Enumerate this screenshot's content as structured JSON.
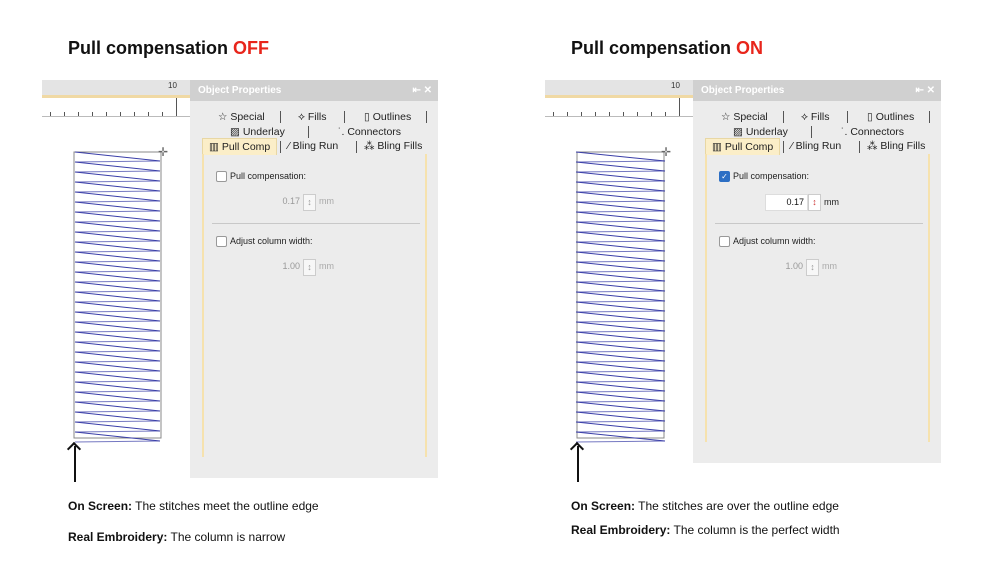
{
  "panels": [
    {
      "heading_prefix": "Pull compensation ",
      "heading_state": "OFF",
      "state_color": "#e8251b",
      "ruler_label": "10",
      "window_title": "Object Properties",
      "window_controls": "⇤ ✕",
      "tabs": {
        "special": "☆ Special",
        "fills": "⟡ Fills",
        "outlines": "▯ Outlines",
        "underlay": "▨ Underlay",
        "connectors": "˙. Connectors",
        "pull_comp": "▥ Pull Comp",
        "bling_run": "⁄ Bling Run",
        "bling_fills": "⁂ Bling Fills"
      },
      "pull_comp_label": "Pull compensation:",
      "pull_comp_checked": false,
      "pull_comp_value": "0.17",
      "pull_unit": "mm",
      "adjust_label": "Adjust column width:",
      "adjust_checked": false,
      "adjust_value": "1.00",
      "adjust_unit": "mm",
      "screen_label": "On Screen:",
      "screen_text": " The stitches meet the outline edge",
      "real_label": "Real Embroidery:",
      "real_text": " The column is narrow",
      "stitch_color": "#3a3ea8",
      "stitch_overhang": false
    },
    {
      "heading_prefix": "Pull compensation ",
      "heading_state": "ON",
      "state_color": "#e8251b",
      "ruler_label": "10",
      "window_title": "Object Properties",
      "window_controls": "⇤ ✕",
      "tabs": {
        "special": "☆ Special",
        "fills": "⟡ Fills",
        "outlines": "▯ Outlines",
        "underlay": "▨ Underlay",
        "connectors": "˙. Connectors",
        "pull_comp": "▥ Pull Comp",
        "bling_run": "⁄ Bling Run",
        "bling_fills": "⁂ Bling Fills"
      },
      "pull_comp_label": "Pull compensation:",
      "pull_comp_checked": true,
      "pull_comp_value": "0.17",
      "pull_unit": "mm",
      "adjust_label": "Adjust column width:",
      "adjust_checked": false,
      "adjust_value": "1.00",
      "adjust_unit": "mm",
      "screen_label": "On Screen:",
      "screen_text": " The stitches are over the outline edge",
      "real_label": "Real Embroidery:",
      "real_text": " The column is the perfect width",
      "stitch_color": "#3a3ea8",
      "stitch_overhang": true
    }
  ]
}
